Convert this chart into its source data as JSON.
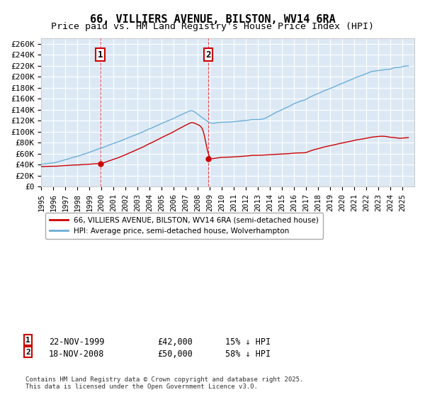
{
  "title": "66, VILLIERS AVENUE, BILSTON, WV14 6RA",
  "subtitle": "Price paid vs. HM Land Registry's House Price Index (HPI)",
  "background_color": "#ffffff",
  "plot_bg_color": "#dce9f5",
  "grid_color": "#ffffff",
  "y_label": "",
  "x_label": "",
  "ylim": [
    0,
    270000
  ],
  "yticks": [
    0,
    20000,
    40000,
    60000,
    80000,
    100000,
    120000,
    140000,
    160000,
    180000,
    200000,
    220000,
    240000,
    260000
  ],
  "y_tick_labels": [
    "£0",
    "£20K",
    "£40K",
    "£60K",
    "£80K",
    "£100K",
    "£120K",
    "£140K",
    "£160K",
    "£180K",
    "£200K",
    "£220K",
    "£240K",
    "£260K"
  ],
  "xlim_start": 1995.0,
  "xlim_end": 2026.0,
  "xtick_years": [
    1995,
    1996,
    1997,
    1998,
    1999,
    2000,
    2001,
    2002,
    2003,
    2004,
    2005,
    2006,
    2007,
    2008,
    2009,
    2010,
    2011,
    2012,
    2013,
    2014,
    2015,
    2016,
    2017,
    2018,
    2019,
    2020,
    2021,
    2022,
    2023,
    2024,
    2025
  ],
  "hpi_color": "#6baed6",
  "price_color": "#cc0000",
  "sale1_x": 1999.9,
  "sale1_y": 42000,
  "sale1_label": "1",
  "sale1_date": "22-NOV-1999",
  "sale1_price": "£42,000",
  "sale1_hpi_note": "15% ↓ HPI",
  "sale2_x": 2008.88,
  "sale2_y": 50000,
  "sale2_label": "2",
  "sale2_date": "18-NOV-2008",
  "sale2_price": "£50,000",
  "sale2_hpi_note": "58% ↓ HPI",
  "vline1_x": 1999.9,
  "vline2_x": 2008.88,
  "shade_between": true,
  "legend_line1": "66, VILLIERS AVENUE, BILSTON, WV14 6RA (semi-detached house)",
  "legend_line2": "HPI: Average price, semi-detached house, Wolverhampton",
  "footer": "Contains HM Land Registry data © Crown copyright and database right 2025.\nThis data is licensed under the Open Government Licence v3.0.",
  "box_color": "#cc0000",
  "label_fontsize": 8.5,
  "title_fontsize": 11,
  "subtitle_fontsize": 9.5,
  "annotation_fontsize": 8
}
